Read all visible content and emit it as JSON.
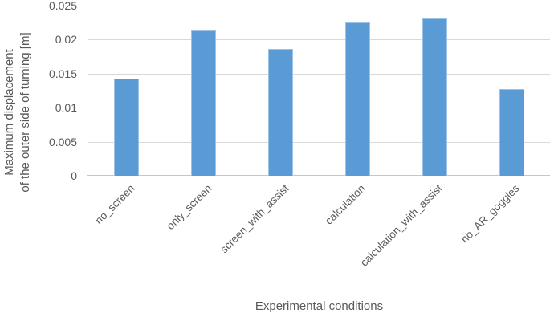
{
  "chart_data": {
    "type": "bar",
    "title": "",
    "categories": [
      "no_screen",
      "only_screen",
      "screen_with_assist",
      "calculation",
      "calculation_with_assist",
      "no_AR_goggles"
    ],
    "values": [
      0.0143,
      0.0214,
      0.0186,
      0.0225,
      0.0231,
      0.0127
    ],
    "xlabel": "Experimental conditions",
    "ylabel_line1": "Maximum displacement",
    "ylabel_line2": "of the outer side of turning [m]",
    "ylim": [
      0,
      0.025
    ],
    "yticks": [
      0,
      0.005,
      0.01,
      0.015,
      0.02,
      0.025
    ],
    "ytick_labels": [
      "0",
      "0.005",
      "0.01",
      "0.015",
      "0.02",
      "0.025"
    ],
    "grid": true,
    "legend": false,
    "colors": {
      "bar_fill": "#5B9BD5",
      "bar_border": "#9CC2E5",
      "gridline": "#D9D9D9",
      "axis_line": "#C6C6C6",
      "text": "#595959"
    }
  }
}
